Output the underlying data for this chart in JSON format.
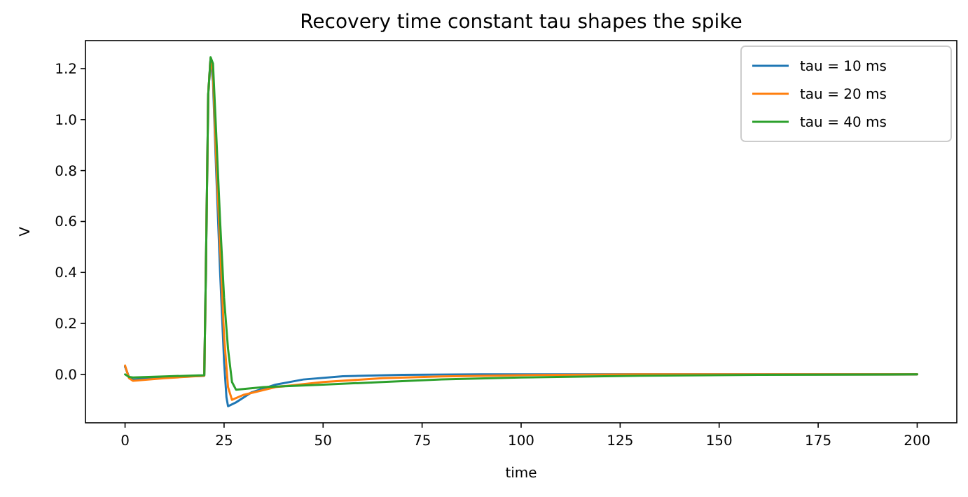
{
  "chart_data": {
    "type": "line",
    "title": "Recovery time constant tau shapes the spike",
    "xlabel": "time",
    "ylabel": "V",
    "xlim": [
      -10,
      210
    ],
    "ylim": [
      -0.19,
      1.31
    ],
    "xticks": [
      0,
      25,
      50,
      75,
      100,
      125,
      150,
      175,
      200
    ],
    "yticks": [
      {
        "value": 0,
        "label": "0.0"
      },
      {
        "value": 0.2,
        "label": "0.2"
      },
      {
        "value": 0.4,
        "label": "0.4"
      },
      {
        "value": 0.6,
        "label": "0.6"
      },
      {
        "value": 0.8,
        "label": "0.8"
      },
      {
        "value": 1,
        "label": "1.0"
      },
      {
        "value": 1.2,
        "label": "1.2"
      }
    ],
    "grid": false,
    "legend": "top right",
    "series": [
      {
        "name": "tau = 10 ms",
        "color": "#1f77b4",
        "x": [
          0,
          1,
          2,
          10,
          20,
          20.4,
          21,
          21.6,
          22.2,
          23,
          24,
          25,
          25.6,
          26,
          28,
          32,
          38,
          45,
          55,
          70,
          90,
          120,
          160,
          200
        ],
        "values": [
          0.03,
          -0.01,
          -0.02,
          -0.012,
          -0.005,
          0.4,
          1.1,
          1.24,
          1.15,
          0.8,
          0.4,
          0.05,
          -0.09,
          -0.125,
          -0.11,
          -0.07,
          -0.04,
          -0.02,
          -0.007,
          -0.002,
          0,
          0,
          0,
          0
        ]
      },
      {
        "name": "tau = 20 ms",
        "color": "#ff7f0e",
        "x": [
          0,
          1,
          2,
          10,
          20,
          20.4,
          21,
          21.6,
          22.2,
          23,
          24,
          25,
          26,
          27,
          30,
          38,
          50,
          65,
          80,
          100,
          130,
          160,
          200
        ],
        "values": [
          0.035,
          -0.015,
          -0.025,
          -0.015,
          -0.005,
          0.4,
          1.1,
          1.24,
          1.18,
          0.85,
          0.5,
          0.15,
          -0.05,
          -0.1,
          -0.08,
          -0.05,
          -0.03,
          -0.015,
          -0.008,
          -0.003,
          0,
          0,
          0
        ]
      },
      {
        "name": "tau = 40 ms",
        "color": "#2ca02c",
        "x": [
          0,
          1,
          2,
          10,
          20,
          20.4,
          21,
          21.6,
          22.2,
          23,
          24,
          25,
          26,
          27,
          28,
          35,
          50,
          65,
          80,
          100,
          130,
          160,
          200
        ],
        "values": [
          0,
          -0.01,
          -0.012,
          -0.008,
          -0.003,
          0.4,
          1.1,
          1.245,
          1.22,
          0.95,
          0.6,
          0.3,
          0.1,
          -0.03,
          -0.06,
          -0.05,
          -0.04,
          -0.03,
          -0.02,
          -0.012,
          -0.005,
          -0.002,
          0
        ]
      }
    ]
  }
}
